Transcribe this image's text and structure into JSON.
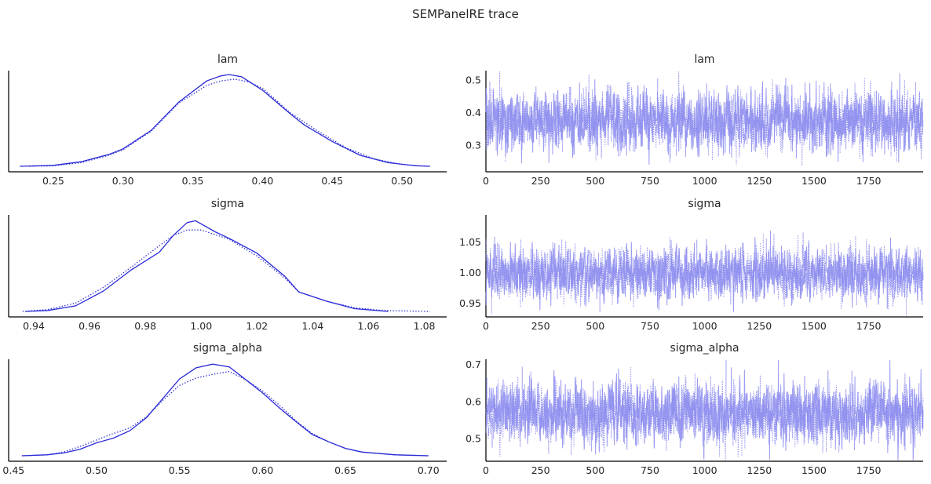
{
  "figure": {
    "title": "SEMPanelRE trace"
  },
  "colors": {
    "line": "#2a2ad8",
    "trace": "#8c8cef"
  },
  "chart_data": [
    {
      "type": "line",
      "kind": "density",
      "title": "lam",
      "xlim": [
        0.218,
        0.532
      ],
      "xticks": [
        0.25,
        0.3,
        0.35,
        0.4,
        0.45,
        0.5
      ],
      "xtick_labels": [
        "0.25",
        "0.30",
        "0.35",
        "0.40",
        "0.45",
        "0.50"
      ],
      "series": [
        {
          "style": "solid",
          "x": [
            0.226,
            0.25,
            0.27,
            0.29,
            0.3,
            0.32,
            0.34,
            0.36,
            0.37,
            0.376,
            0.385,
            0.4,
            0.42,
            0.43,
            0.45,
            0.47,
            0.49,
            0.51,
            0.52
          ],
          "y": [
            0.0,
            0.01,
            0.05,
            0.13,
            0.19,
            0.39,
            0.7,
            0.93,
            0.985,
            1.0,
            0.975,
            0.83,
            0.57,
            0.45,
            0.27,
            0.12,
            0.04,
            0.005,
            0.0
          ]
        },
        {
          "style": "dotted",
          "x": [
            0.233,
            0.25,
            0.27,
            0.29,
            0.3,
            0.32,
            0.34,
            0.36,
            0.37,
            0.38,
            0.39,
            0.4,
            0.42,
            0.44,
            0.46,
            0.48,
            0.5,
            0.52
          ],
          "y": [
            0.0,
            0.005,
            0.04,
            0.12,
            0.18,
            0.38,
            0.69,
            0.88,
            0.93,
            0.95,
            0.92,
            0.85,
            0.58,
            0.38,
            0.2,
            0.08,
            0.02,
            0.0
          ]
        }
      ]
    },
    {
      "type": "line",
      "kind": "trace",
      "title": "lam",
      "xlim": [
        0,
        1999
      ],
      "ylim": [
        0.22,
        0.53
      ],
      "xticks": [
        0,
        250,
        500,
        750,
        1000,
        1250,
        1500,
        1750
      ],
      "xtick_labels": [
        "0",
        "250",
        "500",
        "750",
        "1000",
        "1250",
        "1500",
        "1750"
      ],
      "yticks": [
        0.3,
        0.4,
        0.5
      ],
      "ytick_labels": [
        "0.3",
        "0.4",
        "0.5"
      ],
      "draws": 2000,
      "chains": 2,
      "mean": 0.375,
      "sd": 0.045
    },
    {
      "type": "line",
      "kind": "density",
      "title": "sigma",
      "xlim": [
        0.931,
        1.088
      ],
      "xticks": [
        0.94,
        0.96,
        0.98,
        1.0,
        1.02,
        1.04,
        1.06,
        1.08
      ],
      "xtick_labels": [
        "0.94",
        "0.96",
        "0.98",
        "1.00",
        "1.02",
        "1.04",
        "1.06",
        "1.08"
      ],
      "series": [
        {
          "style": "solid",
          "x": [
            0.937,
            0.945,
            0.955,
            0.965,
            0.975,
            0.985,
            0.99,
            0.995,
            0.998,
            1.005,
            1.01,
            1.02,
            1.03,
            1.035,
            1.045,
            1.055,
            1.067
          ],
          "y": [
            0.0,
            0.01,
            0.06,
            0.22,
            0.45,
            0.64,
            0.82,
            0.96,
            0.98,
            0.86,
            0.79,
            0.63,
            0.38,
            0.21,
            0.11,
            0.03,
            0.0
          ]
        },
        {
          "style": "dotted",
          "x": [
            0.936,
            0.945,
            0.955,
            0.965,
            0.975,
            0.985,
            0.99,
            0.995,
            1.0,
            1.01,
            1.02,
            1.03,
            1.035,
            1.045,
            1.055,
            1.065,
            1.082
          ],
          "y": [
            0.0,
            0.02,
            0.09,
            0.26,
            0.48,
            0.71,
            0.82,
            0.88,
            0.88,
            0.78,
            0.6,
            0.36,
            0.21,
            0.11,
            0.04,
            0.01,
            0.0
          ]
        }
      ]
    },
    {
      "type": "line",
      "kind": "trace",
      "title": "sigma",
      "xlim": [
        0,
        1999
      ],
      "ylim": [
        0.928,
        1.095
      ],
      "xticks": [
        0,
        250,
        500,
        750,
        1000,
        1250,
        1500,
        1750
      ],
      "xtick_labels": [
        "0",
        "250",
        "500",
        "750",
        "1000",
        "1250",
        "1500",
        "1750"
      ],
      "yticks": [
        0.95,
        1.0,
        1.05
      ],
      "ytick_labels": [
        "0.95",
        "1.00",
        "1.05"
      ],
      "draws": 2000,
      "chains": 2,
      "mean": 1.0,
      "sd": 0.021
    },
    {
      "type": "line",
      "kind": "density",
      "title": "sigma_alpha",
      "xlim": [
        0.447,
        0.711
      ],
      "xticks": [
        0.45,
        0.5,
        0.55,
        0.6,
        0.65,
        0.7
      ],
      "xtick_labels": [
        "0.45",
        "0.50",
        "0.55",
        "0.60",
        "0.65",
        "0.70"
      ],
      "series": [
        {
          "style": "solid",
          "x": [
            0.455,
            0.47,
            0.48,
            0.49,
            0.5,
            0.51,
            0.52,
            0.53,
            0.54,
            0.55,
            0.56,
            0.57,
            0.58,
            0.59,
            0.6,
            0.61,
            0.62,
            0.63,
            0.64,
            0.65,
            0.66,
            0.68,
            0.7
          ],
          "y": [
            0.0,
            0.01,
            0.03,
            0.07,
            0.14,
            0.19,
            0.27,
            0.41,
            0.62,
            0.83,
            0.95,
            0.99,
            0.96,
            0.82,
            0.68,
            0.52,
            0.37,
            0.23,
            0.15,
            0.08,
            0.04,
            0.01,
            0.0
          ]
        },
        {
          "style": "dotted",
          "x": [
            0.455,
            0.47,
            0.48,
            0.49,
            0.5,
            0.51,
            0.52,
            0.53,
            0.54,
            0.55,
            0.56,
            0.57,
            0.58,
            0.59,
            0.6,
            0.61,
            0.62,
            0.63,
            0.64,
            0.65,
            0.66,
            0.68,
            0.7
          ],
          "y": [
            0.0,
            0.01,
            0.04,
            0.1,
            0.17,
            0.24,
            0.3,
            0.42,
            0.6,
            0.76,
            0.84,
            0.88,
            0.91,
            0.82,
            0.7,
            0.55,
            0.38,
            0.24,
            0.15,
            0.08,
            0.04,
            0.01,
            0.0
          ]
        }
      ]
    },
    {
      "type": "line",
      "kind": "trace",
      "title": "sigma_alpha",
      "xlim": [
        0,
        1999
      ],
      "ylim": [
        0.44,
        0.715
      ],
      "xticks": [
        0,
        250,
        500,
        750,
        1000,
        1250,
        1500,
        1750
      ],
      "xtick_labels": [
        "0",
        "250",
        "500",
        "750",
        "1000",
        "1250",
        "1500",
        "1750"
      ],
      "yticks": [
        0.5,
        0.6,
        0.7
      ],
      "ytick_labels": [
        "0.5",
        "0.6",
        "0.7"
      ],
      "draws": 2000,
      "chains": 2,
      "mean": 0.57,
      "sd": 0.04
    }
  ]
}
